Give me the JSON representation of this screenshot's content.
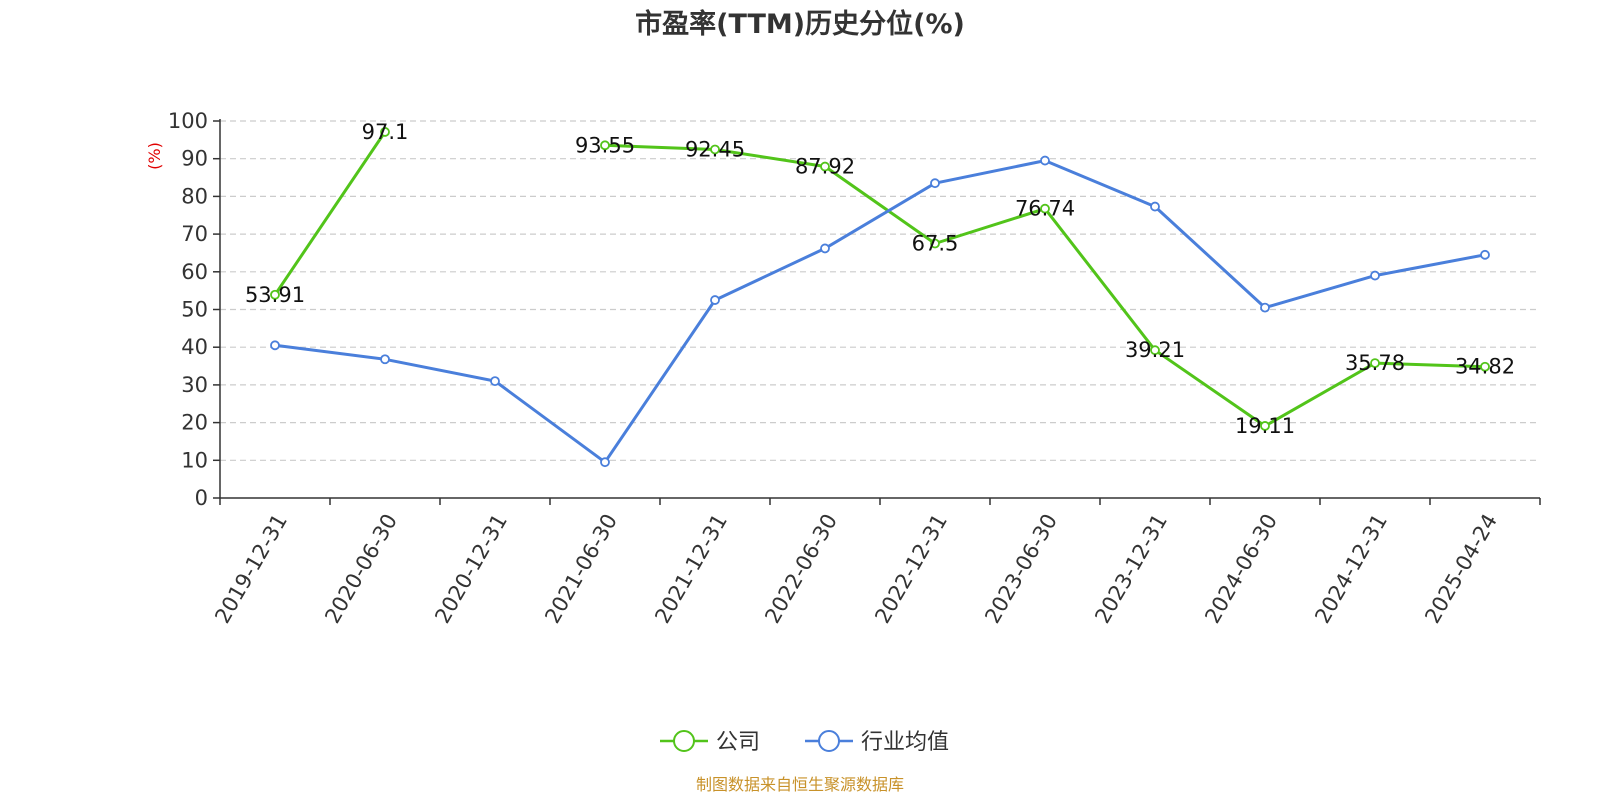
{
  "chart_data": {
    "type": "line",
    "title": "市盈率(TTM)历史分位(%)",
    "ylabel": "(%)",
    "ylim": [
      0,
      100
    ],
    "yticks": [
      0,
      10,
      20,
      30,
      40,
      50,
      60,
      70,
      80,
      90,
      100
    ],
    "categories": [
      "2019-12-31",
      "2020-06-30",
      "2020-12-31",
      "2021-06-30",
      "2021-12-31",
      "2022-06-30",
      "2022-12-31",
      "2023-06-30",
      "2023-12-31",
      "2024-06-30",
      "2024-12-31",
      "2025-04-24"
    ],
    "grid": true,
    "legend_position": "bottom-center",
    "series": [
      {
        "name": "公司",
        "color": "#52c41a",
        "values": [
          53.91,
          97.1,
          null,
          93.55,
          92.45,
          87.92,
          67.5,
          76.74,
          39.21,
          19.11,
          35.78,
          34.82
        ],
        "show_labels": true
      },
      {
        "name": "行业均值",
        "color": "#4a7fdb",
        "values": [
          40.5,
          36.8,
          31.0,
          9.5,
          52.5,
          66.2,
          83.5,
          89.5,
          77.3,
          50.5,
          59.0,
          64.5
        ],
        "show_labels": false
      }
    ]
  },
  "colors": {
    "ylabel": "#e00000",
    "source": "#c8922a",
    "grid": "#cccccc",
    "axis": "#333333"
  },
  "source_text": "制图数据来自恒生聚源数据库"
}
